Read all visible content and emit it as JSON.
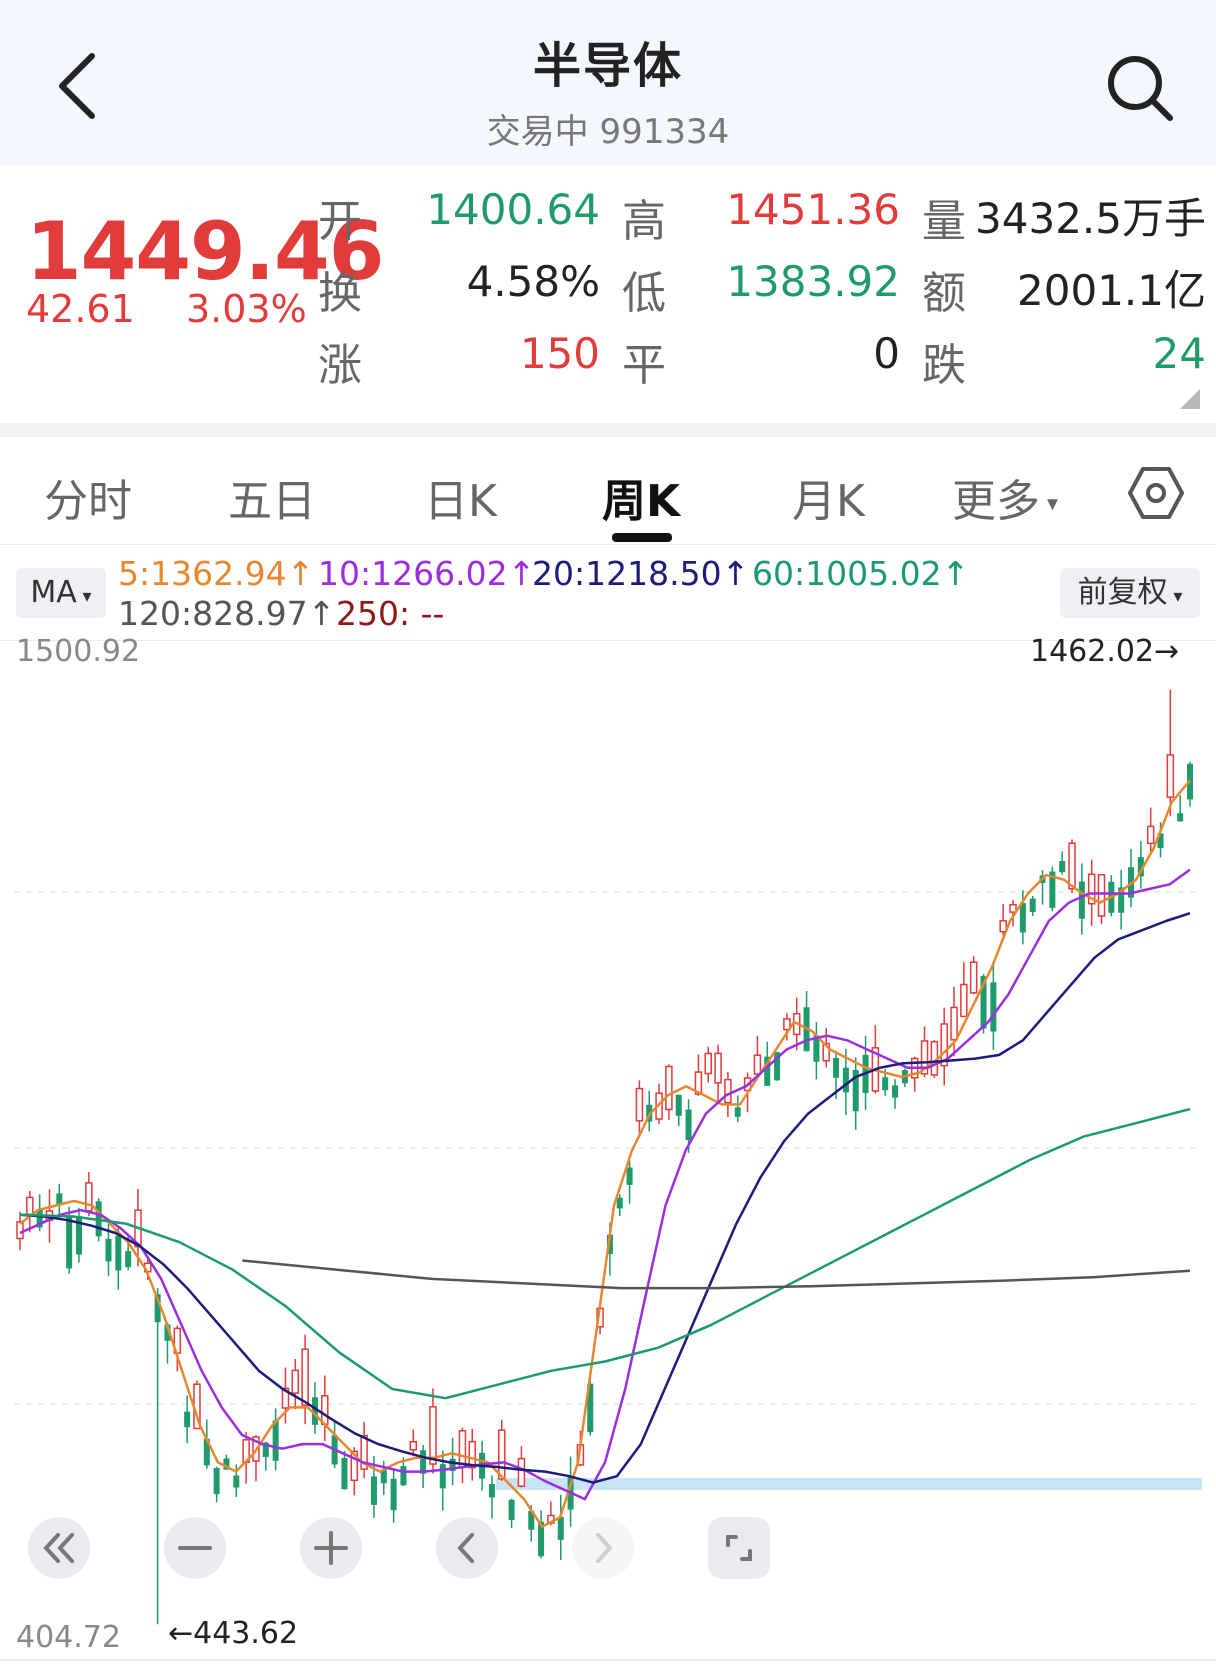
{
  "header": {
    "title": "半导体",
    "subtitle": "交易中 991334"
  },
  "quote": {
    "price": "1449.46",
    "change": "42.61",
    "change_pct": "3.03%",
    "open_label": "开",
    "open_value": "1400.64",
    "high_label": "高",
    "high_value": "1451.36",
    "volume_label": "量",
    "volume_value": "3432.5万手",
    "turnover_label": "换",
    "turnover_value": "4.58%",
    "low_label": "低",
    "low_value": "1383.92",
    "amount_label": "额",
    "amount_value": "2001.1亿",
    "rise_label": "涨",
    "rise_value": "150",
    "flat_label": "平",
    "flat_value": "0",
    "fall_label": "跌",
    "fall_value": "24"
  },
  "tabs": [
    "分时",
    "五日",
    "日K",
    "周K",
    "月K",
    "更多"
  ],
  "active_tab": "周K",
  "ma": {
    "button": "MA",
    "ma5": "5:1362.94↑",
    "ma10": "10:1266.02↑",
    "ma20": "20:1218.50↑",
    "ma60": "60:1005.02↑",
    "ma120": "120:828.97↑",
    "ma250": "250: --",
    "adjust_button": "前复权"
  },
  "colors": {
    "up": "#e23b3b",
    "down": "#1f9a6a",
    "ma5": "#e8872e",
    "ma10": "#9b2fe0",
    "ma20": "#1c1c7a",
    "ma60": "#1a9a6e",
    "ma120": "#555555",
    "ma250": "#8b1a1a",
    "highlight_band": "#c8e4f7"
  },
  "chart_labels": {
    "y_max": "1500.92",
    "y_min": "404.72",
    "high_mark": "1462.02→",
    "low_mark": "←443.62"
  },
  "chart_data": {
    "type": "candlestick",
    "ylim": [
      404.72,
      1500.92
    ],
    "high": 1462.02,
    "low": 443.62,
    "series": [
      {
        "name": "5",
        "values": [
          880,
          895,
          900,
          905,
          900,
          880,
          860,
          830,
          780,
          720,
          660,
          620,
          610,
          630,
          660,
          680,
          680,
          660,
          640,
          620,
          610,
          620,
          625,
          625,
          630,
          625,
          620,
          600,
          580,
          550,
          560,
          620,
          760,
          900,
          960,
          1000,
          1020,
          1030,
          1020,
          1010,
          1010,
          1040,
          1070,
          1100,
          1090,
          1070,
          1060,
          1050,
          1045,
          1040,
          1045,
          1060,
          1080,
          1120,
          1160,
          1210,
          1240,
          1260,
          1255,
          1240,
          1230,
          1240,
          1255,
          1290,
          1340,
          1362.94
        ]
      },
      {
        "name": "10",
        "values": [
          870,
          880,
          890,
          895,
          890,
          875,
          855,
          820,
          770,
          720,
          680,
          650,
          640,
          635,
          640,
          640,
          630,
          620,
          615,
          610,
          610,
          612,
          615,
          618,
          620,
          612,
          600,
          590,
          580,
          620,
          700,
          800,
          900,
          960,
          1000,
          1020,
          1030,
          1050,
          1070,
          1080,
          1085,
          1080,
          1070,
          1060,
          1050,
          1050,
          1060,
          1080,
          1100,
          1130,
          1170,
          1210,
          1230,
          1240,
          1240,
          1240,
          1245,
          1250,
          1266.02
        ]
      },
      {
        "name": "20",
        "values": [
          890,
          888,
          884,
          878,
          870,
          856,
          836,
          810,
          780,
          750,
          720,
          700,
          685,
          668,
          652,
          640,
          632,
          625,
          620,
          617,
          615,
          612,
          610,
          605,
          598,
          605,
          640,
          700,
          760,
          820,
          880,
          930,
          970,
          1000,
          1020,
          1040,
          1050,
          1055,
          1056,
          1058,
          1060,
          1064,
          1080,
          1110,
          1140,
          1170,
          1190,
          1200,
          1210,
          1218.5
        ]
      },
      {
        "name": "60",
        "values": [
          890,
          888,
          880,
          860,
          830,
          790,
          740,
          700,
          690,
          705,
          720,
          730,
          745,
          770,
          800,
          830,
          860,
          890,
          920,
          950,
          975,
          990,
          1005.02
        ]
      },
      {
        "name": "120",
        "values": [
          840,
          830,
          820,
          815,
          810,
          810,
          812,
          815,
          818,
          822,
          828.97
        ]
      }
    ]
  }
}
